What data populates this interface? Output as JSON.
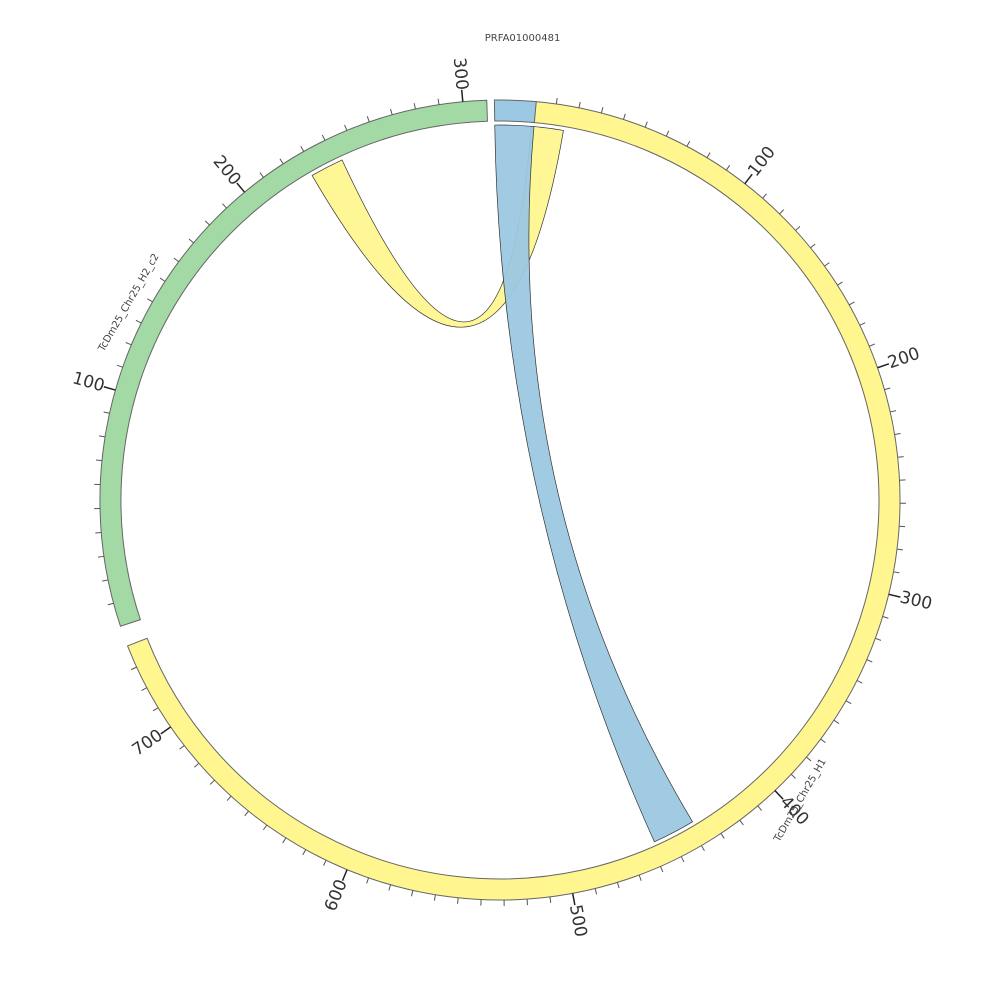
{
  "diagram": {
    "type": "circos",
    "tick_step": 10,
    "label_step": 100
  },
  "segments": [
    {
      "id": "h1",
      "name": "TcDm25_Chr25_H1",
      "length": 740,
      "color": "#FFF68F",
      "label_ticks": true
    },
    {
      "id": "h2",
      "name": "TcDm25_Chr25_H2_c2",
      "length": 310,
      "color": "#A3D9A5",
      "label_ticks": true
    },
    {
      "id": "prfa",
      "name": "PRFA01000481",
      "length": 14,
      "color": "#9BC8E2",
      "label_ticks": false
    }
  ],
  "links": [
    {
      "from": {
        "segment": "h1",
        "start": 0,
        "end": 15
      },
      "to": {
        "segment": "h2",
        "start": 228,
        "end": 243
      },
      "color": "#FFF68F"
    },
    {
      "from": {
        "segment": "prfa",
        "start": 0,
        "end": 14
      },
      "to": {
        "segment": "h1",
        "start": 438,
        "end": 458
      },
      "color": "#9BC8E2"
    }
  ]
}
